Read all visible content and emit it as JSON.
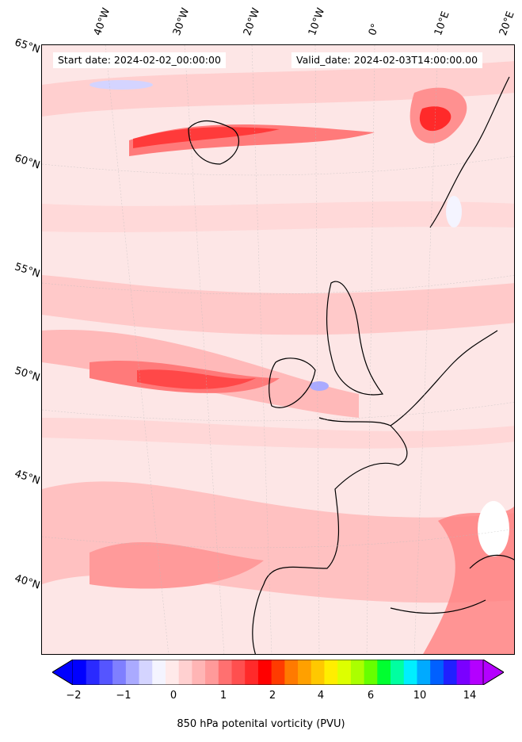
{
  "header": {
    "start_date": "Start date: 2024-02-02_00:00:00",
    "valid_date": "Valid_date: 2024-02-03T14:00:00.00"
  },
  "longitude_labels": [
    "40°W",
    "30°W",
    "20°W",
    "10°W",
    "0°",
    "10°E",
    "20°E"
  ],
  "latitude_labels": [
    "65°N",
    "60°N",
    "55°N",
    "50°N",
    "45°N",
    "40°N"
  ],
  "colorbar": {
    "tick_labels": [
      "−2",
      "−1",
      "0",
      "1",
      "2",
      "4",
      "6",
      "10",
      "14"
    ],
    "title": "850 hPa potenital vorticity (PVU)",
    "colors": [
      "#0000ff",
      "#2a2aff",
      "#5555ff",
      "#7f7fff",
      "#aaaaff",
      "#d4d4ff",
      "#f4f4ff",
      "#ffeaea",
      "#ffd0d0",
      "#ffb5b5",
      "#ff9a9a",
      "#ff7070",
      "#ff4f4f",
      "#ff2a2a",
      "#ff0000",
      "#ff3b00",
      "#ff7a00",
      "#ffa000",
      "#ffc800",
      "#ffee00",
      "#ddff00",
      "#aaff00",
      "#66ff00",
      "#00ff30",
      "#00ffa0",
      "#00eeff",
      "#00aaff",
      "#0060ff",
      "#2020ff",
      "#7a00ff",
      "#b400ff"
    ],
    "extend_low_color": "#0000ff",
    "extend_high_color": "#b400ff"
  }
}
